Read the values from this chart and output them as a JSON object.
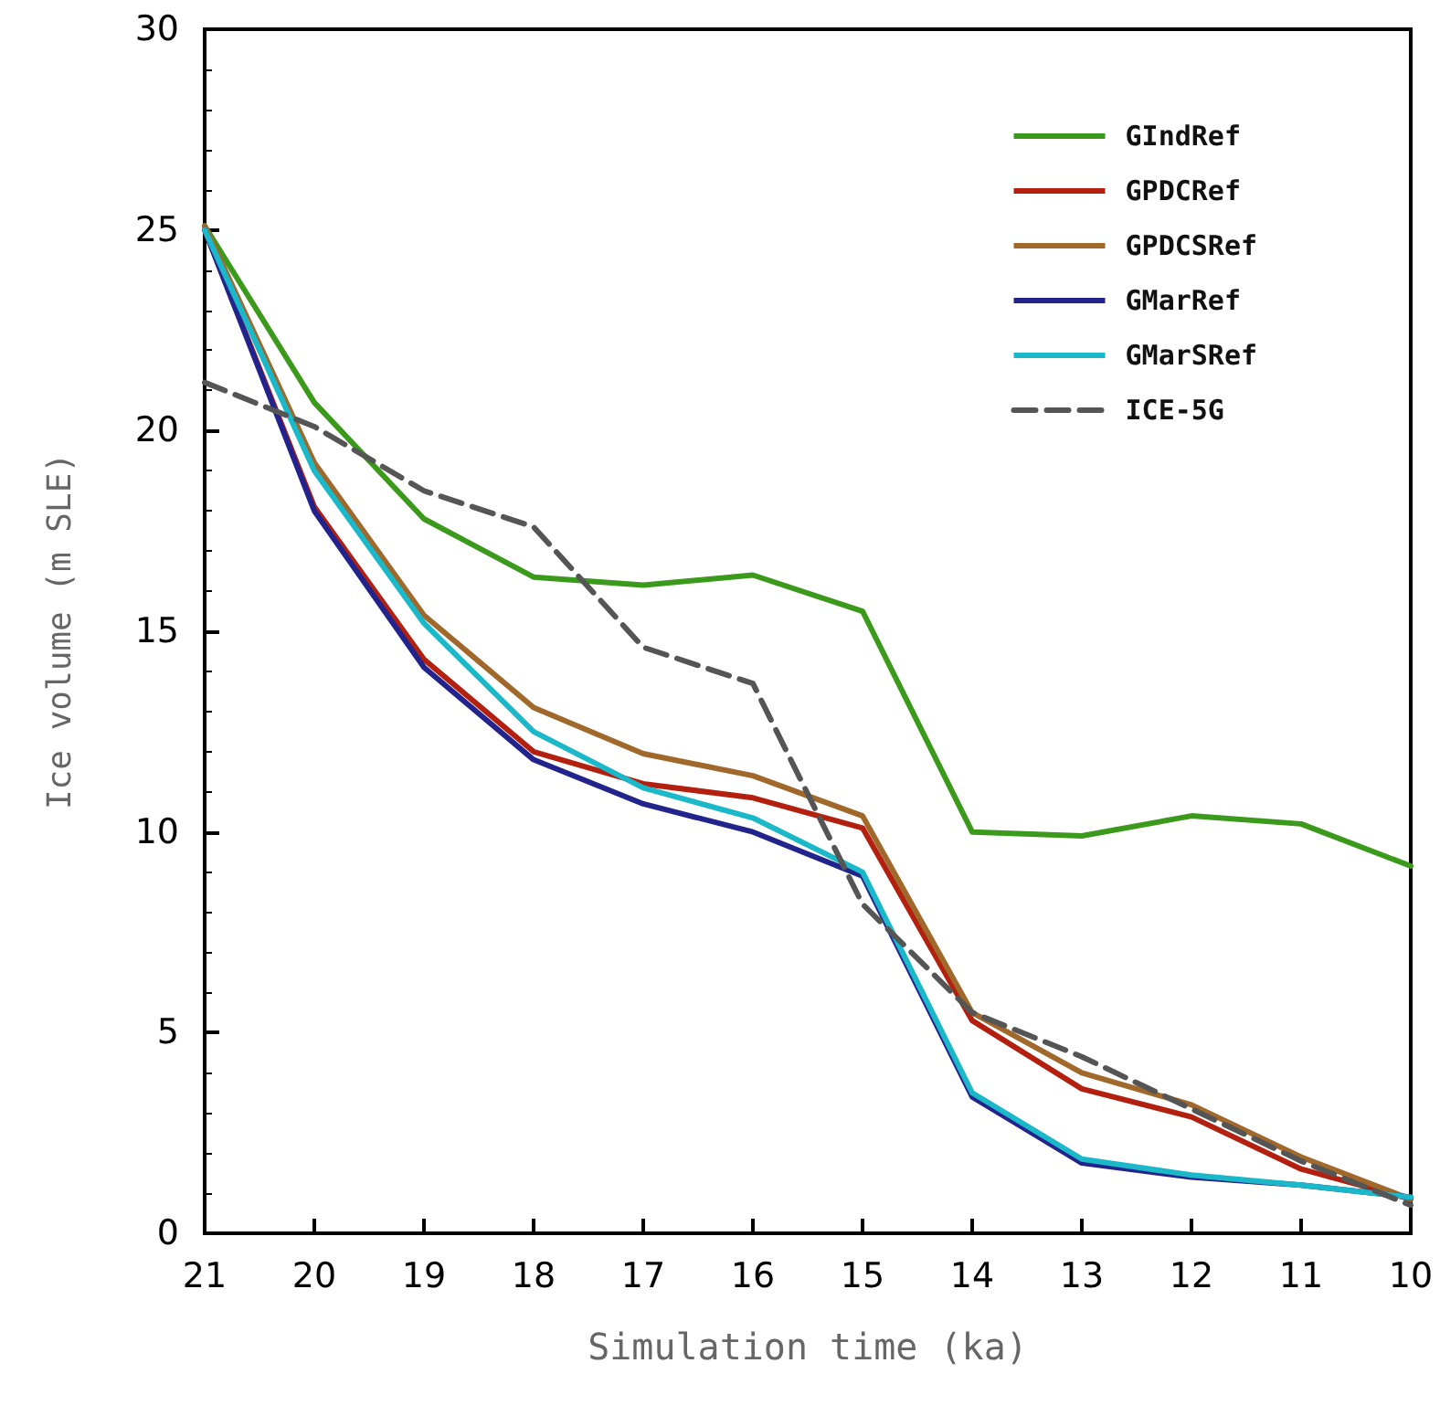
{
  "chart_data": {
    "type": "line",
    "xlabel": "Simulation time (ka)",
    "ylabel": "Ice volume (m SLE)",
    "x": [
      21,
      20,
      19,
      18,
      17,
      16,
      15,
      14,
      13,
      12,
      11,
      10
    ],
    "xlim": [
      21,
      10
    ],
    "xticks": [
      21,
      20,
      19,
      18,
      17,
      16,
      15,
      14,
      13,
      12,
      11,
      10
    ],
    "ylim": [
      0,
      30
    ],
    "yticks": [
      0,
      5,
      10,
      15,
      20,
      25,
      30
    ],
    "grid": false,
    "legend": "top right",
    "marker": "none",
    "series": [
      {
        "name": "GIndRef",
        "color": "#3b9a1c",
        "values": [
          25.1,
          20.7,
          17.8,
          16.35,
          16.15,
          16.4,
          15.5,
          10.0,
          9.9,
          10.4,
          10.2,
          9.15
        ]
      },
      {
        "name": "GPDCRef",
        "color": "#b3200f",
        "values": [
          25.0,
          18.1,
          14.3,
          12.0,
          11.2,
          10.85,
          10.1,
          5.3,
          3.6,
          2.9,
          1.6,
          0.85
        ]
      },
      {
        "name": "GPDCSRef",
        "color": "#a0682a",
        "values": [
          25.1,
          19.2,
          15.4,
          13.1,
          11.95,
          11.4,
          10.4,
          5.5,
          4.0,
          3.2,
          1.9,
          0.85
        ]
      },
      {
        "name": "GMarRef",
        "color": "#23238c",
        "values": [
          25.0,
          18.0,
          14.1,
          11.8,
          10.7,
          10.0,
          8.9,
          3.4,
          1.75,
          1.4,
          1.2,
          0.9
        ]
      },
      {
        "name": "GMarSRef",
        "color": "#1ab8c8",
        "values": [
          25.0,
          19.0,
          15.2,
          12.5,
          11.1,
          10.35,
          9.0,
          3.5,
          1.85,
          1.45,
          1.2,
          0.9
        ]
      },
      {
        "name": "ICE-5G",
        "color": "#555555",
        "line_style": "dashed",
        "values": [
          21.2,
          20.1,
          18.5,
          17.6,
          14.6,
          13.7,
          8.2,
          5.5,
          4.4,
          3.1,
          1.8,
          0.7
        ]
      }
    ]
  }
}
